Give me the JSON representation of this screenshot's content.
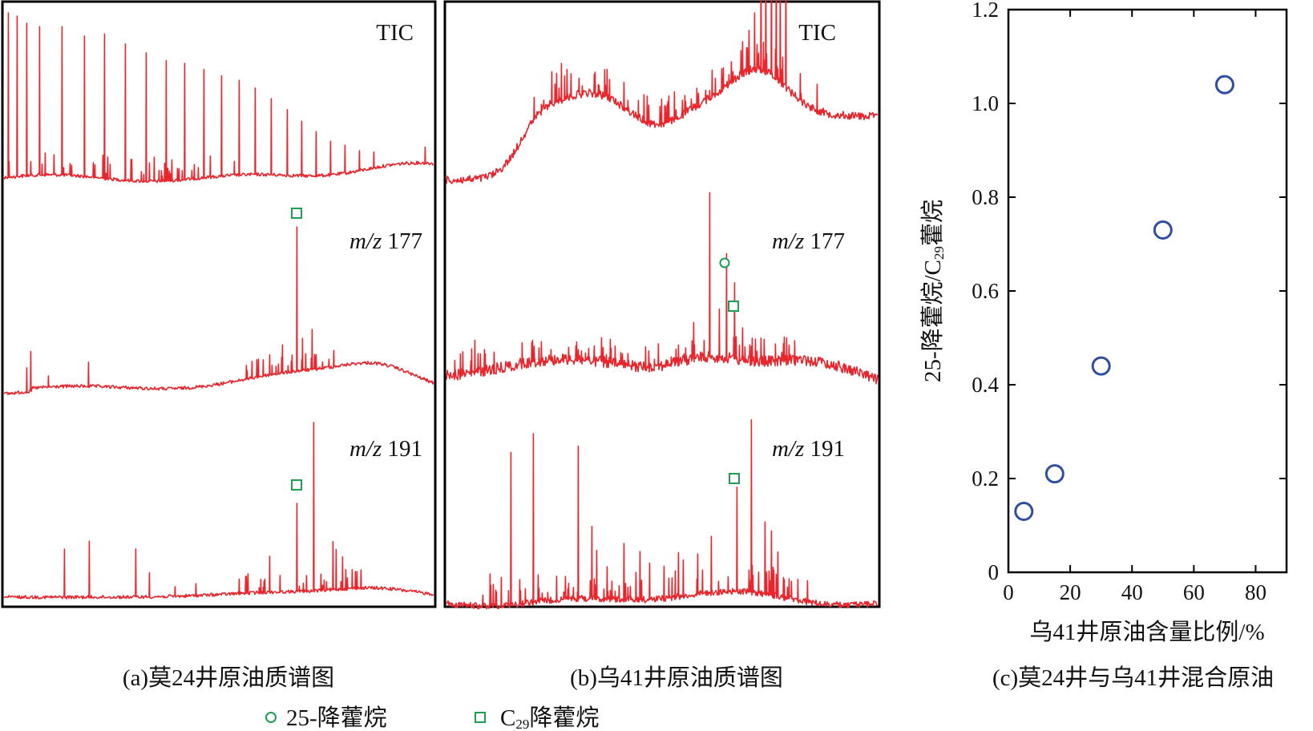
{
  "panel_a": {
    "tic_label": "TIC",
    "mz177_prefix": "m/z",
    "mz177_value": " 177",
    "mz191_prefix": "m/z",
    "mz191_value": " 191",
    "caption": "(a)莫24井原油质谱图"
  },
  "panel_b": {
    "tic_label": "TIC",
    "mz177_prefix": "m/z",
    "mz177_value": " 177",
    "mz191_prefix": "m/z",
    "mz191_value": " 191",
    "caption": "(b)乌41井原油质谱图"
  },
  "legend": {
    "circle_label": "25-降藿烷",
    "square_prefix": "C",
    "square_sub": "29",
    "square_suffix": "降藿烷"
  },
  "colors": {
    "trace": "#e8262d",
    "marker_green": "#1e9e52",
    "point_blue": "#2f4ea1"
  },
  "chart_data": [
    {
      "type": "line",
      "title": "(a)莫24井原油质谱图",
      "series": [
        {
          "name": "TIC"
        },
        {
          "name": "m/z 177"
        },
        {
          "name": "m/z 191"
        }
      ]
    },
    {
      "type": "line",
      "title": "(b)乌41井原油质谱图",
      "series": [
        {
          "name": "TIC"
        },
        {
          "name": "m/z 177"
        },
        {
          "name": "m/z 191"
        }
      ]
    },
    {
      "type": "scatter",
      "title": "(c)莫24井与乌41井混合原油",
      "xlabel": "乌41井原油含量比例/%",
      "ylabel_prefix": "25-降藿烷/C",
      "ylabel_sub": "29",
      "ylabel_suffix": "藿烷",
      "xlim": [
        0,
        90
      ],
      "ylim": [
        0,
        1.2
      ],
      "xticks": [
        "0",
        "20",
        "40",
        "60",
        "80"
      ],
      "yticks": [
        "0",
        "0.2",
        "0.4",
        "0.6",
        "0.8",
        "1.0",
        "1.2"
      ],
      "x": [
        5,
        15,
        30,
        50,
        70
      ],
      "y": [
        0.13,
        0.21,
        0.44,
        0.73,
        1.04
      ]
    }
  ]
}
